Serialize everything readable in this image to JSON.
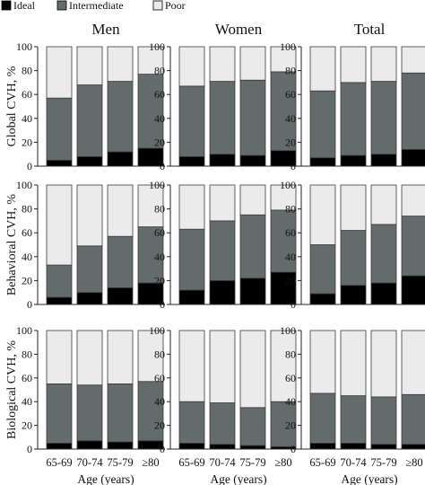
{
  "legend": [
    {
      "label": "Ideal",
      "color": "#000000"
    },
    {
      "label": "Intermediate",
      "color": "#636b6b"
    },
    {
      "label": "Poor",
      "color": "#ebebeb"
    }
  ],
  "colors": {
    "ideal": "#000000",
    "intermediate": "#636b6b",
    "poor": "#ebebeb",
    "border": "#3a3a3a",
    "axis": "#222222"
  },
  "chart_data": {
    "type": "bar",
    "stacked": true,
    "columns": [
      "Men",
      "Women",
      "Total"
    ],
    "rows": [
      "Global CVH, %",
      "Behavioral CVH, %",
      "Biological CVH, %"
    ],
    "categories": [
      "65-69",
      "70-74",
      "75-79",
      "≥80"
    ],
    "xlabel": "Age (years)",
    "ylim": [
      0,
      100
    ],
    "yticks": [
      0,
      20,
      40,
      60,
      80,
      100
    ],
    "series_order": [
      "Ideal",
      "Intermediate",
      "Poor"
    ],
    "panels": [
      {
        "row": 0,
        "col": 0,
        "ideal": [
          5,
          8,
          12,
          15
        ],
        "intermediate": [
          52,
          60,
          59,
          62
        ],
        "poor": [
          43,
          32,
          29,
          23
        ]
      },
      {
        "row": 0,
        "col": 1,
        "ideal": [
          8,
          10,
          9,
          13
        ],
        "intermediate": [
          59,
          61,
          63,
          66
        ],
        "poor": [
          33,
          29,
          28,
          21
        ]
      },
      {
        "row": 0,
        "col": 2,
        "ideal": [
          7,
          9,
          10,
          14
        ],
        "intermediate": [
          56,
          61,
          61,
          64
        ],
        "poor": [
          37,
          30,
          29,
          22
        ]
      },
      {
        "row": 1,
        "col": 0,
        "ideal": [
          6,
          10,
          14,
          18
        ],
        "intermediate": [
          27,
          39,
          43,
          47
        ],
        "poor": [
          67,
          51,
          43,
          35
        ]
      },
      {
        "row": 1,
        "col": 1,
        "ideal": [
          12,
          20,
          22,
          27
        ],
        "intermediate": [
          51,
          50,
          53,
          52
        ],
        "poor": [
          37,
          30,
          25,
          21
        ]
      },
      {
        "row": 1,
        "col": 2,
        "ideal": [
          9,
          16,
          18,
          24
        ],
        "intermediate": [
          41,
          46,
          49,
          50
        ],
        "poor": [
          50,
          38,
          33,
          26
        ]
      },
      {
        "row": 2,
        "col": 0,
        "ideal": [
          5,
          7,
          6,
          7
        ],
        "intermediate": [
          50,
          47,
          49,
          50
        ],
        "poor": [
          45,
          46,
          45,
          43
        ]
      },
      {
        "row": 2,
        "col": 1,
        "ideal": [
          5,
          4,
          3,
          2
        ],
        "intermediate": [
          35,
          35,
          32,
          38
        ],
        "poor": [
          60,
          61,
          65,
          60
        ]
      },
      {
        "row": 2,
        "col": 2,
        "ideal": [
          5,
          5,
          4,
          4
        ],
        "intermediate": [
          42,
          40,
          40,
          42
        ],
        "poor": [
          53,
          55,
          56,
          54
        ]
      }
    ]
  }
}
